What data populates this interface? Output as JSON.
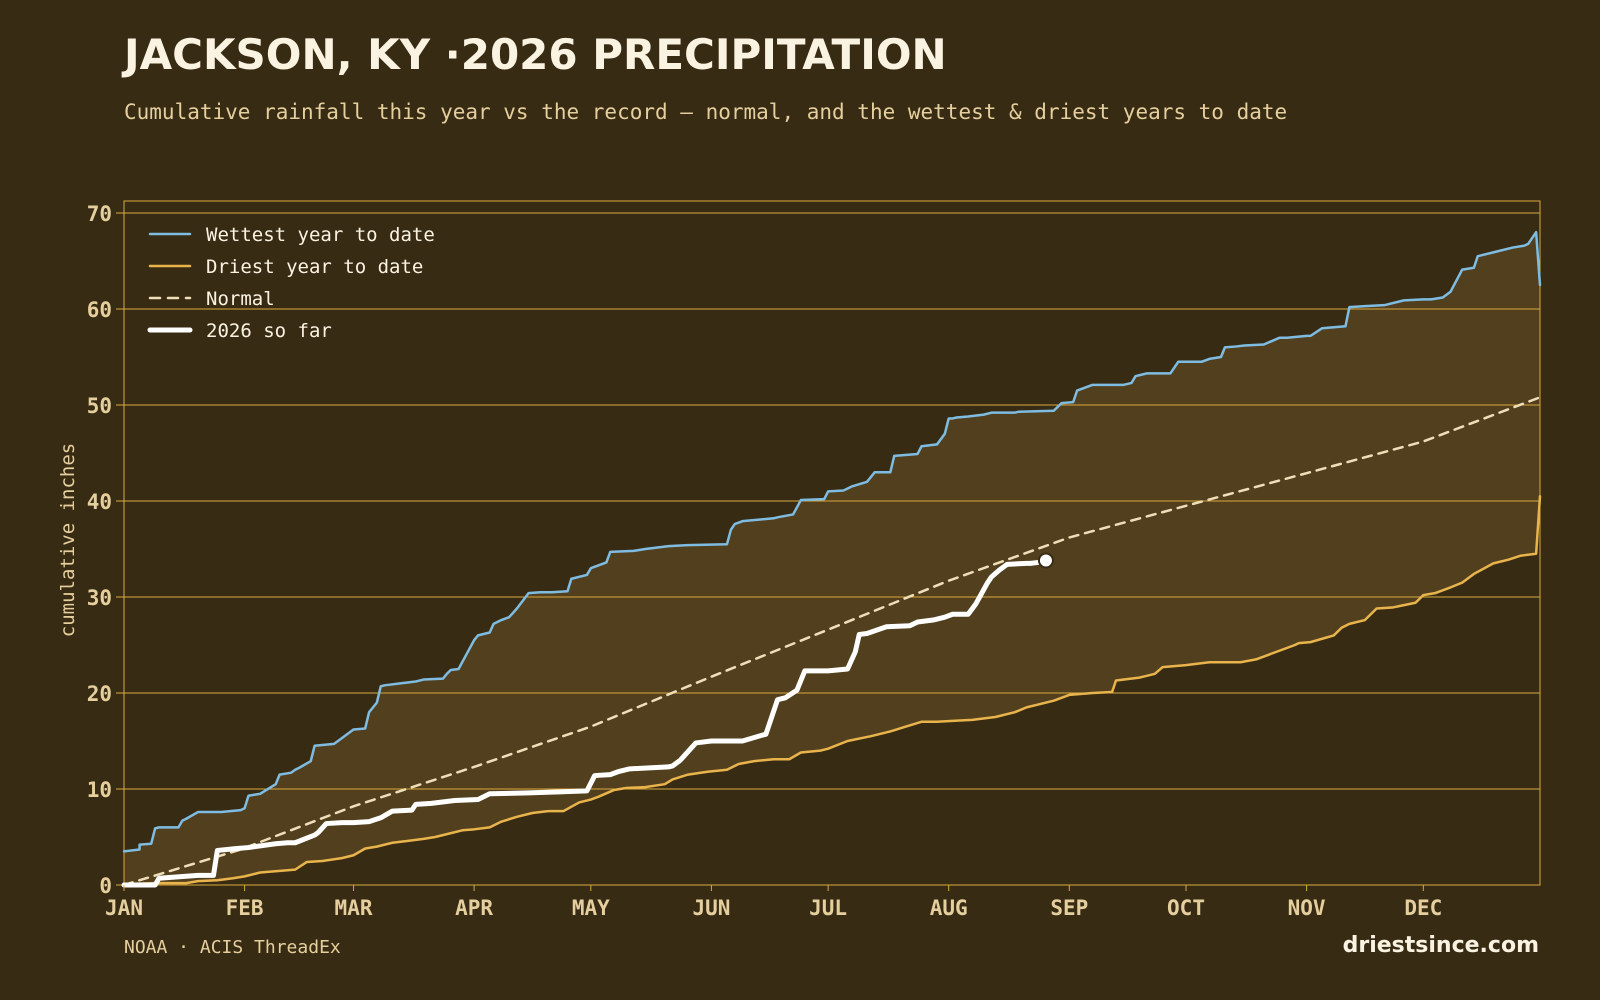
{
  "header": {
    "title": "JACKSON, KY ·2026 PRECIPITATION",
    "subtitle": "Cumulative rainfall this year vs the record — normal, and the wettest & driest years to date"
  },
  "footer": {
    "source": "NOAA · ACIS ThreadEx",
    "site": "driestsince.com"
  },
  "colors": {
    "background": "#382b13",
    "band_fill": "#523f1e",
    "grid": "#d9a83f",
    "wettest": "#7fbce2",
    "driest": "#e9b44c",
    "normal": "#efdfb8",
    "current": "#ffffff"
  },
  "chart_data": {
    "type": "line",
    "ylabel": "cumulative inches",
    "ylim": [
      0,
      70
    ],
    "yticks": [
      0,
      10,
      20,
      30,
      40,
      50,
      60,
      70
    ],
    "xlim": [
      1,
      365
    ],
    "xticks": [
      {
        "label": "JAN",
        "day": 1
      },
      {
        "label": "FEB",
        "day": 32
      },
      {
        "label": "MAR",
        "day": 60
      },
      {
        "label": "APR",
        "day": 91
      },
      {
        "label": "MAY",
        "day": 121
      },
      {
        "label": "JUN",
        "day": 152
      },
      {
        "label": "JUL",
        "day": 182
      },
      {
        "label": "AUG",
        "day": 213
      },
      {
        "label": "SEP",
        "day": 244
      },
      {
        "label": "OCT",
        "day": 274
      },
      {
        "label": "NOV",
        "day": 305
      },
      {
        "label": "DEC",
        "day": 335
      }
    ],
    "grid": "horizontal",
    "legend_position": "top-left",
    "band": "shaded between driest and wettest",
    "series": [
      {
        "name": "Wettest year to date",
        "style": "solid",
        "x": [
          1,
          5,
          5,
          8,
          9,
          10,
          15,
          16,
          17,
          20,
          21,
          26,
          31,
          32,
          33,
          36,
          40,
          41,
          44,
          45,
          46,
          49,
          50,
          55,
          60,
          63,
          64,
          66,
          67,
          68,
          72,
          76,
          78,
          83,
          84,
          85,
          87,
          91,
          92,
          95,
          96,
          98,
          100,
          102,
          105,
          108,
          111,
          115,
          116,
          120,
          121,
          125,
          126,
          132,
          135,
          141,
          146,
          156,
          157,
          158,
          160,
          168,
          169,
          173,
          175,
          181,
          182,
          186,
          188,
          192,
          194,
          198,
          199,
          205,
          206,
          210,
          212,
          213,
          214,
          215,
          218,
          222,
          224,
          230,
          231,
          240,
          242,
          245,
          246,
          250,
          258,
          260,
          261,
          264,
          265,
          270,
          272,
          278,
          280,
          283,
          284,
          287,
          289,
          294,
          298,
          300,
          305,
          306,
          309,
          315,
          316,
          320,
          325,
          330,
          335,
          337,
          340,
          341,
          342,
          345,
          348,
          349,
          353,
          354,
          358,
          361,
          362,
          364,
          365
        ],
        "values": [
          3.5,
          3.7,
          4.2,
          4.3,
          5.9,
          6.0,
          6.0,
          6.7,
          6.9,
          7.6,
          7.6,
          7.6,
          7.8,
          8.0,
          9.3,
          9.5,
          10.5,
          11.5,
          11.7,
          12.0,
          12.2,
          12.9,
          14.5,
          14.7,
          16.2,
          16.3,
          18.0,
          19.0,
          20.7,
          20.8,
          21.0,
          21.2,
          21.4,
          21.5,
          22.0,
          22.4,
          22.5,
          25.5,
          26.0,
          26.3,
          27.2,
          27.6,
          27.9,
          28.8,
          30.4,
          30.5,
          30.5,
          30.6,
          31.9,
          32.3,
          33.0,
          33.6,
          34.7,
          34.8,
          35.0,
          35.3,
          35.4,
          35.5,
          37.0,
          37.6,
          37.9,
          38.2,
          38.3,
          38.6,
          40.1,
          40.2,
          41.0,
          41.1,
          41.5,
          42.0,
          43.0,
          43.0,
          44.7,
          44.9,
          45.7,
          45.9,
          47.0,
          48.6,
          48.6,
          48.7,
          48.8,
          49.0,
          49.2,
          49.2,
          49.3,
          49.4,
          50.2,
          50.3,
          51.5,
          52.1,
          52.1,
          52.3,
          53.0,
          53.3,
          53.3,
          53.3,
          54.5,
          54.5,
          54.8,
          55.0,
          56.0,
          56.1,
          56.2,
          56.3,
          57.0,
          57.0,
          57.2,
          57.2,
          58.0,
          58.2,
          60.2,
          60.3,
          60.4,
          60.9,
          61.0,
          61.0,
          61.2,
          61.5,
          61.8,
          64.1,
          64.3,
          65.5,
          65.9,
          66.0,
          66.4,
          66.6,
          66.8,
          68.0,
          62.5
        ]
      },
      {
        "name": "Driest year to date",
        "style": "solid",
        "x": [
          1,
          9,
          12,
          17,
          20,
          25,
          29,
          32,
          36,
          45,
          48,
          52,
          57,
          60,
          63,
          66,
          70,
          74,
          78,
          81,
          84,
          88,
          91,
          95,
          98,
          102,
          106,
          110,
          114,
          118,
          121,
          123,
          127,
          130,
          135,
          140,
          142,
          146,
          151,
          156,
          159,
          163,
          168,
          172,
          175,
          180,
          182,
          187,
          193,
          198,
          202,
          206,
          210,
          214,
          219,
          225,
          230,
          233,
          237,
          240,
          244,
          250,
          255,
          256,
          262,
          266,
          268,
          274,
          280,
          288,
          292,
          298,
          302,
          303,
          306,
          312,
          314,
          316,
          320,
          323,
          327,
          333,
          335,
          338,
          342,
          345,
          348,
          353,
          357,
          360,
          364,
          365
        ],
        "values": [
          0.1,
          0.2,
          0.2,
          0.2,
          0.4,
          0.5,
          0.7,
          0.9,
          1.3,
          1.6,
          2.4,
          2.5,
          2.8,
          3.1,
          3.8,
          4.0,
          4.4,
          4.6,
          4.8,
          5.0,
          5.3,
          5.7,
          5.8,
          6.0,
          6.6,
          7.1,
          7.5,
          7.7,
          7.7,
          8.6,
          8.9,
          9.2,
          9.9,
          10.1,
          10.2,
          10.5,
          11.0,
          11.5,
          11.8,
          12.0,
          12.6,
          12.9,
          13.1,
          13.1,
          13.8,
          14.0,
          14.2,
          15.0,
          15.5,
          16.0,
          16.5,
          17.0,
          17.0,
          17.1,
          17.2,
          17.5,
          18.0,
          18.5,
          18.9,
          19.2,
          19.8,
          20.0,
          20.1,
          21.3,
          21.6,
          22.0,
          22.7,
          22.9,
          23.2,
          23.2,
          23.5,
          24.4,
          25.0,
          25.2,
          25.3,
          26.0,
          26.8,
          27.2,
          27.6,
          28.8,
          28.9,
          29.4,
          30.2,
          30.4,
          31.0,
          31.5,
          32.4,
          33.5,
          33.9,
          34.3,
          34.5,
          40.5
        ]
      },
      {
        "name": "Normal",
        "style": "dashed",
        "x": [
          1,
          31,
          60,
          91,
          121,
          152,
          182,
          213,
          244,
          274,
          305,
          335,
          365
        ],
        "values": [
          0.0,
          3.7,
          8.2,
          12.3,
          16.5,
          21.7,
          26.6,
          31.7,
          36.2,
          39.5,
          42.9,
          46.2,
          50.8
        ]
      },
      {
        "name": "2026 so far",
        "style": "bold",
        "x": [
          1,
          9,
          10,
          20,
          24,
          25,
          30,
          33,
          40,
          43,
          45,
          50,
          51,
          53,
          57,
          60,
          64,
          67,
          70,
          75,
          76,
          80,
          86,
          92,
          95,
          105,
          113,
          120,
          122,
          126,
          128,
          131,
          136,
          141,
          142,
          144,
          148,
          152,
          160,
          165,
          166,
          169,
          171,
          174,
          176,
          182,
          187,
          189,
          190,
          192,
          197,
          203,
          205,
          209,
          212,
          214,
          218,
          220,
          223,
          224,
          226,
          228,
          233,
          234,
          236,
          238
        ],
        "values": [
          0.0,
          0.0,
          0.7,
          1.0,
          1.0,
          3.6,
          3.8,
          3.9,
          4.3,
          4.4,
          4.4,
          5.2,
          5.5,
          6.4,
          6.5,
          6.5,
          6.6,
          7.0,
          7.7,
          7.8,
          8.4,
          8.5,
          8.8,
          8.9,
          9.5,
          9.6,
          9.7,
          9.8,
          11.4,
          11.5,
          11.8,
          12.1,
          12.2,
          12.3,
          12.4,
          13.0,
          14.8,
          15.0,
          15.0,
          15.6,
          15.7,
          19.3,
          19.5,
          20.3,
          22.3,
          22.3,
          22.5,
          24.3,
          26.1,
          26.2,
          26.9,
          27.0,
          27.4,
          27.6,
          27.9,
          28.2,
          28.2,
          29.3,
          31.5,
          32.1,
          32.8,
          33.4,
          33.5,
          33.5,
          33.6,
          33.8
        ]
      }
    ]
  }
}
